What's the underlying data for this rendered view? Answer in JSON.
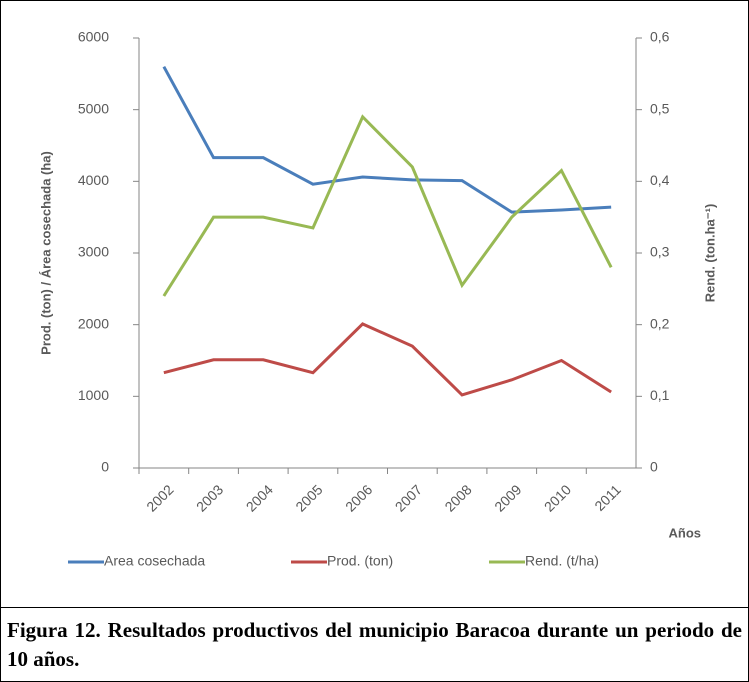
{
  "chart_data": {
    "type": "line",
    "y_label": "Prod. (ton) / Área cosechada (ha)",
    "y2_label": "Rend. (ton.ha⁻¹)",
    "x_label": "Años",
    "categories": [
      "2002",
      "2003",
      "2004",
      "2005",
      "2006",
      "2007",
      "2008",
      "2009",
      "2010",
      "2011"
    ],
    "series": [
      {
        "name": "Area cosechada",
        "color": "#4a7ebb",
        "values": [
          5600,
          4330,
          4330,
          3960,
          4060,
          4020,
          4010,
          3570,
          3600,
          3640
        ]
      },
      {
        "name": "Prod. (ton)",
        "color": "#be4b48",
        "values": [
          1330,
          1510,
          1510,
          1330,
          2010,
          1700,
          1020,
          1230,
          1500,
          1060
        ]
      },
      {
        "name": "Rend. (t/ha)",
        "color": "#98b954",
        "axis": "y2",
        "values": [
          0.24,
          0.35,
          0.35,
          0.335,
          0.49,
          0.42,
          0.255,
          0.35,
          0.415,
          0.28
        ]
      }
    ],
    "ylim": [
      0,
      6000
    ],
    "yticks": [
      0,
      1000,
      2000,
      3000,
      4000,
      5000,
      6000
    ],
    "y2lim": [
      0,
      0.6
    ],
    "y2ticks": [
      0,
      {
        "value": 0.1,
        "label": "0,1"
      },
      {
        "value": 0.2,
        "label": "0,2"
      },
      {
        "value": 0.3,
        "label": "0,3"
      },
      {
        "value": 0.4,
        "label": "0,4"
      },
      {
        "value": 0.5,
        "label": "0,5"
      },
      {
        "value": 0.6,
        "label": "0,6"
      }
    ]
  },
  "caption": "Figura 12. Resultados productivos del municipio Baracoa durante un periodo de 10 años."
}
